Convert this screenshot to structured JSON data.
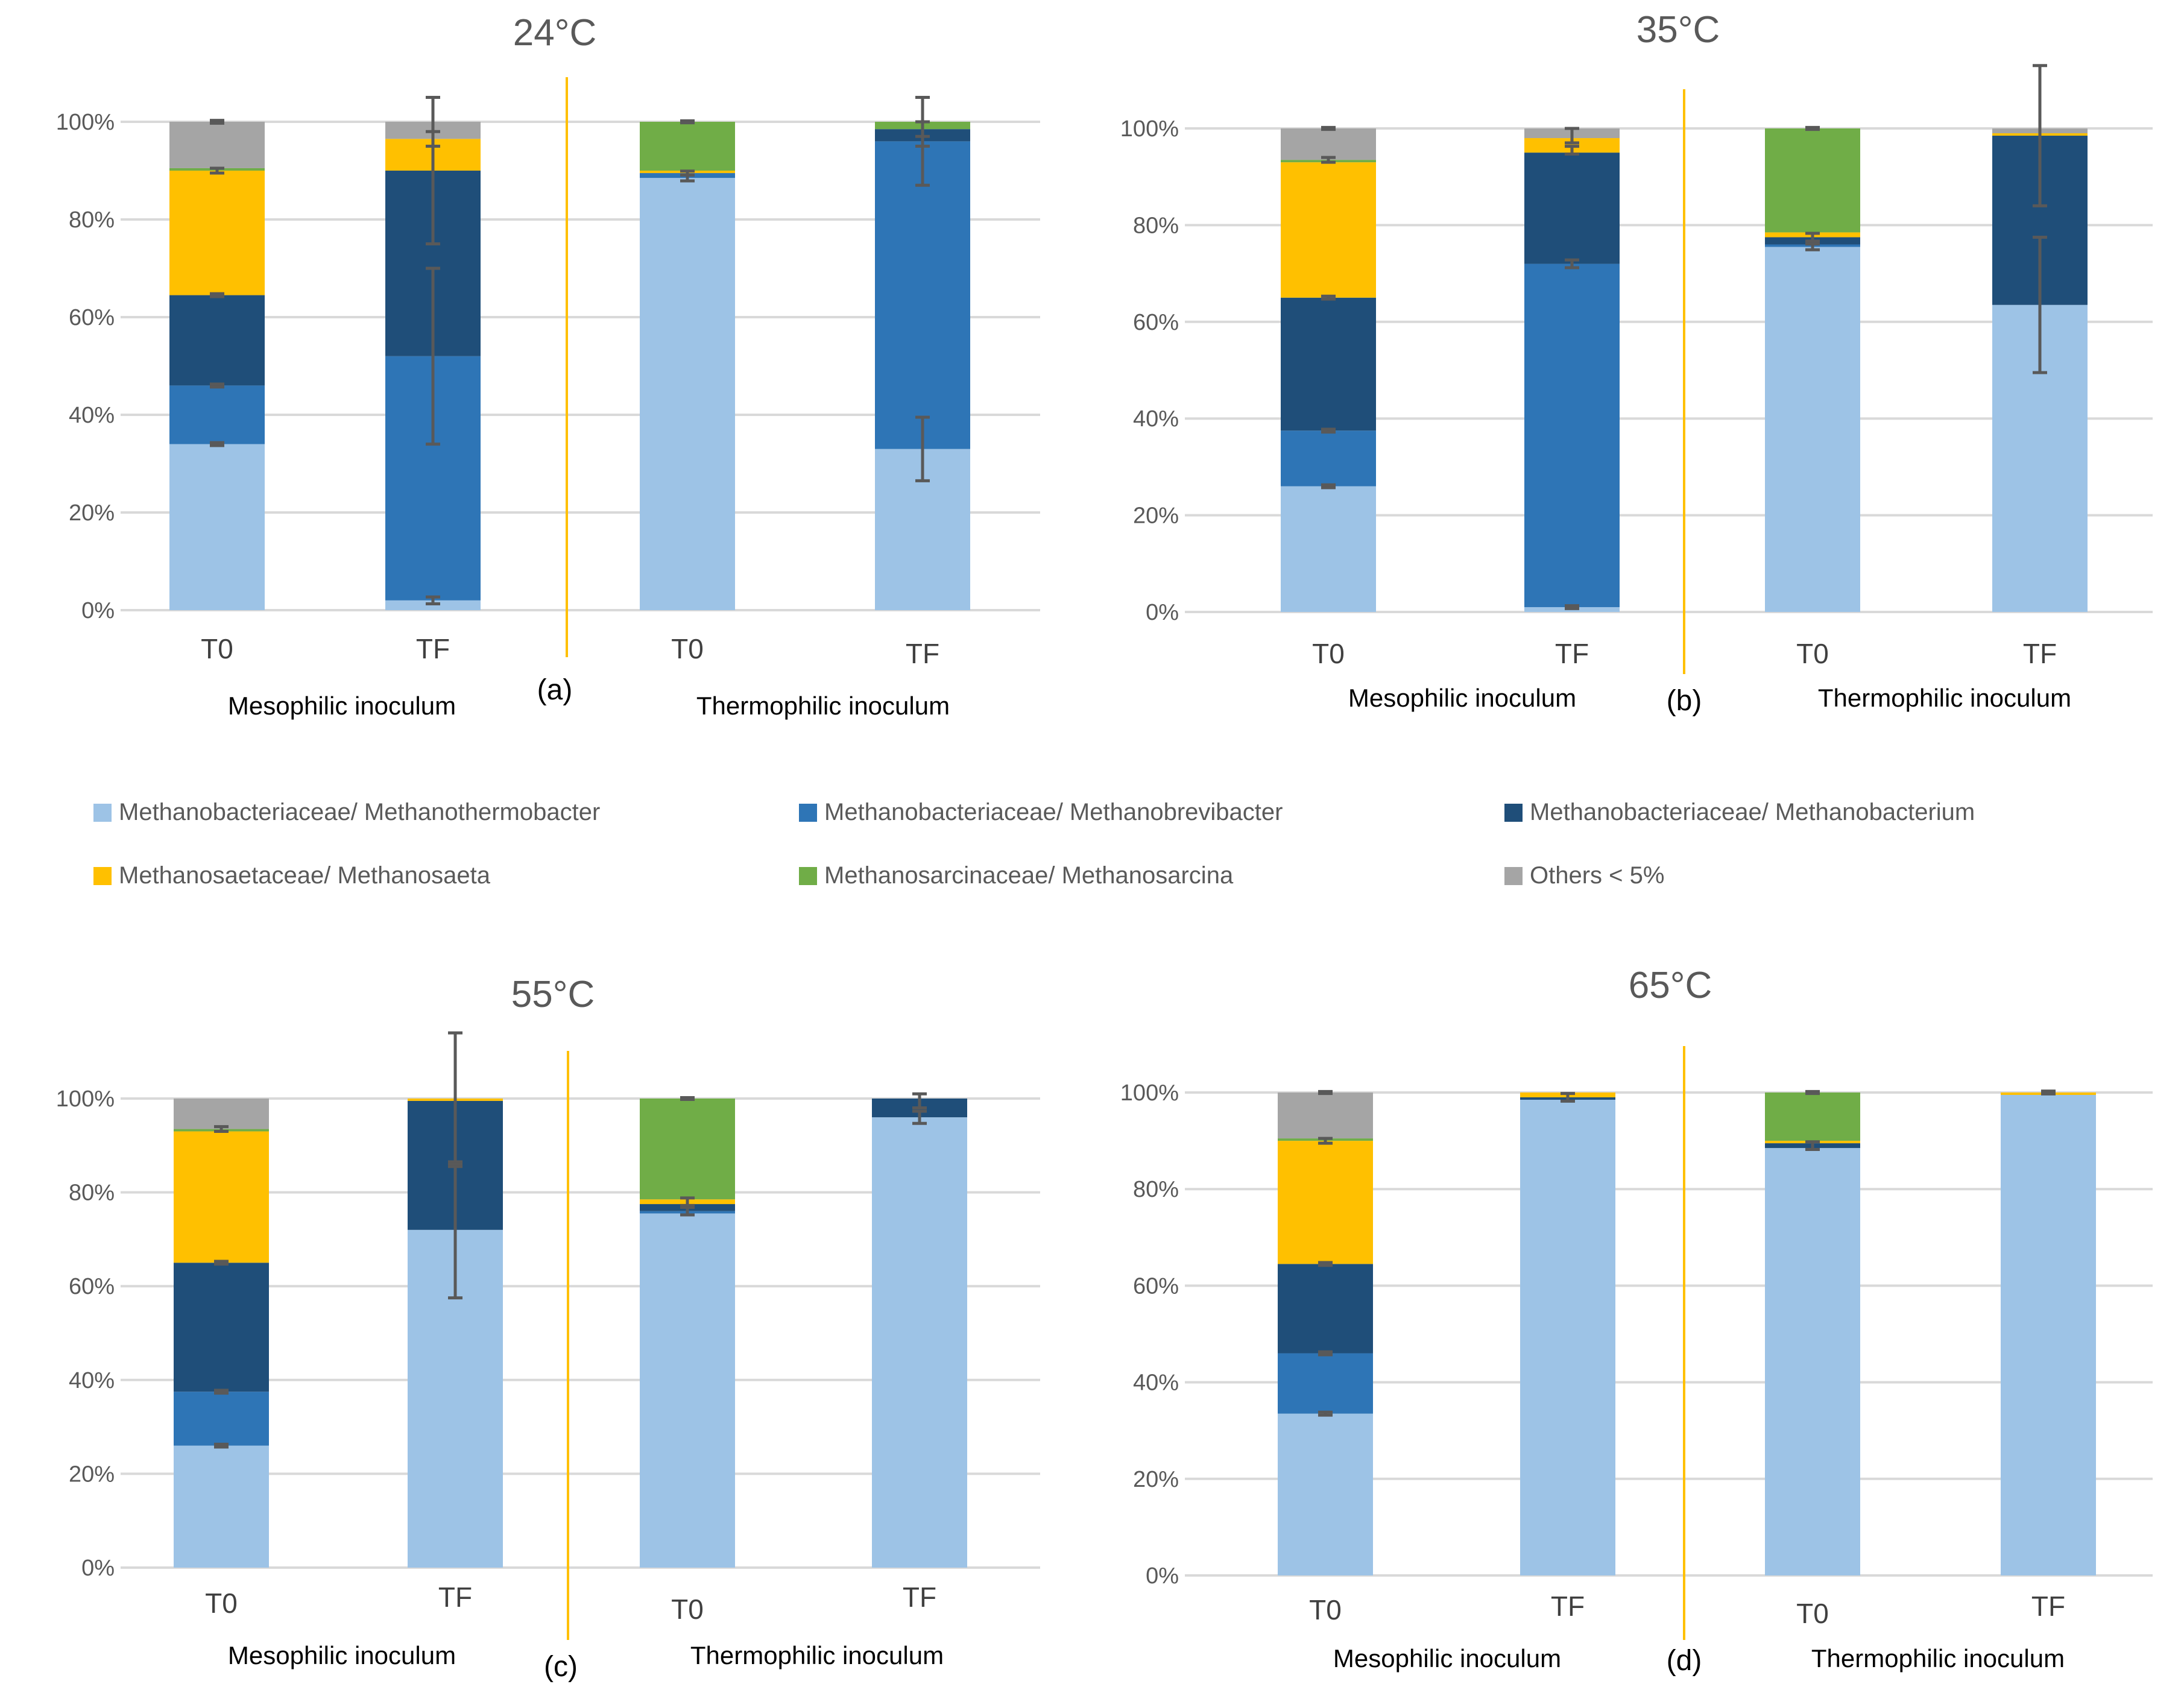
{
  "colors": {
    "Methanothermobacter": "#9DC3E6",
    "Methanobrevibacter": "#2E75B6",
    "Methanobacterium": "#1F4E79",
    "Methanosaeta": "#FFC000",
    "Methanosarcina": "#70AD47",
    "Others": "#A5A5A5",
    "divider": "#FFC000",
    "grid": "#D9D9D9",
    "errorbar": "#595959"
  },
  "legend": [
    {
      "label": "Methanobacteriaceae/ Methanothermobacter",
      "color_key": "Methanothermobacter"
    },
    {
      "label": "Methanobacteriaceae/ Methanobrevibacter",
      "color_key": "Methanobrevibacter"
    },
    {
      "label": "Methanobacteriaceae/ Methanobacterium",
      "color_key": "Methanobacterium"
    },
    {
      "label": "Methanosaetaceae/ Methanosaeta",
      "color_key": "Methanosaeta"
    },
    {
      "label": "Methanosarcinaceae/ Methanosarcina",
      "color_key": "Methanosarcina"
    },
    {
      "label": "Others < 5%",
      "color_key": "Others"
    }
  ],
  "chart_data": [
    {
      "type": "bar",
      "stacked": true,
      "title": "24°C",
      "panel_letter": "(a)",
      "categories": [
        "T0",
        "TF",
        "T0",
        "TF"
      ],
      "groups": [
        "Mesophilic inoculum",
        "Thermophilic inoculum"
      ],
      "yticks": [
        "0%",
        "20%",
        "40%",
        "60%",
        "80%",
        "100%"
      ],
      "ylim": [
        0,
        100
      ],
      "series": [
        {
          "name": "Methanobacteriaceae/ Methanothermobacter",
          "values": [
            34,
            2,
            88.5,
            33
          ]
        },
        {
          "name": "Methanobacteriaceae/ Methanobrevibacter",
          "values": [
            12,
            50,
            1,
            63
          ]
        },
        {
          "name": "Methanobacteriaceae/ Methanobacterium",
          "values": [
            18.5,
            38,
            0,
            2.5
          ]
        },
        {
          "name": "Methanosaetaceae/ Methanosaeta",
          "values": [
            25.5,
            6.5,
            0.5,
            0
          ]
        },
        {
          "name": "Methanosarcinaceae/ Methanosarcina",
          "values": [
            0.5,
            0,
            10,
            1.5
          ]
        },
        {
          "name": "Others < 5%",
          "values": [
            9.5,
            3.5,
            0,
            0
          ]
        }
      ],
      "error_bars": [
        [
          {
            "y": 34,
            "e": 0.3
          },
          {
            "y": 46,
            "e": 0.3
          },
          {
            "y": 64.5,
            "e": 0.3
          },
          {
            "y": 90,
            "e": 0.5
          },
          {
            "y": 100,
            "e": 0.3
          }
        ],
        [
          {
            "y": 2,
            "e": 0.7
          },
          {
            "y": 52,
            "e": 18
          },
          {
            "y": 90,
            "e": 15
          },
          {
            "y": 96.5,
            "e": 1.5
          },
          {
            "y": 100,
            "e": 5
          }
        ],
        [
          {
            "y": 88.5,
            "e": 0.6
          },
          {
            "y": 89.5,
            "e": 0.4
          },
          {
            "y": 100,
            "e": 0.2
          }
        ],
        [
          {
            "y": 33,
            "e": 6.5
          },
          {
            "y": 96,
            "e": 9
          },
          {
            "y": 98.5,
            "e": 1.5
          },
          {
            "y": 100,
            "e": 5
          }
        ]
      ]
    },
    {
      "type": "bar",
      "stacked": true,
      "title": "35°C",
      "panel_letter": "(b)",
      "categories": [
        "T0",
        "TF",
        "T0",
        "TF"
      ],
      "groups": [
        "Mesophilic inoculum",
        "Thermophilic inoculum"
      ],
      "yticks": [
        "0%",
        "20%",
        "40%",
        "60%",
        "80%",
        "100%"
      ],
      "ylim": [
        0,
        100
      ],
      "series": [
        {
          "name": "Methanobacteriaceae/ Methanothermobacter",
          "values": [
            26,
            1,
            75.5,
            63.5
          ]
        },
        {
          "name": "Methanobacteriaceae/ Methanobrevibacter",
          "values": [
            11.5,
            71,
            0.5,
            0
          ]
        },
        {
          "name": "Methanobacteriaceae/ Methanobacterium",
          "values": [
            27.5,
            23,
            1.5,
            35
          ]
        },
        {
          "name": "Methanosaetaceae/ Methanosaeta",
          "values": [
            28,
            3,
            1,
            0.5
          ]
        },
        {
          "name": "Methanosarcinaceae/ Methanosarcina",
          "values": [
            0.5,
            0,
            21.5,
            0
          ]
        },
        {
          "name": "Others < 5%",
          "values": [
            6.5,
            2,
            0,
            1
          ]
        }
      ],
      "error_bars": [
        [
          {
            "y": 26,
            "e": 0.3
          },
          {
            "y": 37.5,
            "e": 0.3
          },
          {
            "y": 65,
            "e": 0.3
          },
          {
            "y": 93.5,
            "e": 0.5
          },
          {
            "y": 100,
            "e": 0.2
          }
        ],
        [
          {
            "y": 1,
            "e": 0.3
          },
          {
            "y": 72,
            "e": 0.8
          },
          {
            "y": 95.5,
            "e": 0.8
          },
          {
            "y": 98.5,
            "e": 1.5
          }
        ],
        [
          {
            "y": 75.5,
            "e": 0.6
          },
          {
            "y": 77.5,
            "e": 0.8
          },
          {
            "y": 100,
            "e": 0.2
          }
        ],
        [
          {
            "y": 63.5,
            "e": 14
          },
          {
            "y": 98.5,
            "e": 14.5
          }
        ]
      ]
    },
    {
      "type": "bar",
      "stacked": true,
      "title": "55°C",
      "panel_letter": "(c)",
      "categories": [
        "T0",
        "TF",
        "T0",
        "TF"
      ],
      "groups": [
        "Mesophilic inoculum",
        "Thermophilic inoculum"
      ],
      "yticks": [
        "0%",
        "20%",
        "40%",
        "60%",
        "80%",
        "100%"
      ],
      "ylim": [
        0,
        100
      ],
      "series": [
        {
          "name": "Methanobacteriaceae/ Methanothermobacter",
          "values": [
            26,
            72,
            75.5,
            96
          ]
        },
        {
          "name": "Methanobacteriaceae/ Methanobrevibacter",
          "values": [
            11.5,
            0,
            0.5,
            0
          ]
        },
        {
          "name": "Methanobacteriaceae/ Methanobacterium",
          "values": [
            27.5,
            27.5,
            1.5,
            4
          ]
        },
        {
          "name": "Methanosaetaceae/ Methanosaeta",
          "values": [
            28,
            0.5,
            1,
            0
          ]
        },
        {
          "name": "Methanosarcinaceae/ Methanosarcina",
          "values": [
            0.5,
            0,
            21.5,
            0
          ]
        },
        {
          "name": "Others < 5%",
          "values": [
            6.5,
            0,
            0,
            0
          ]
        }
      ],
      "error_bars": [
        [
          {
            "y": 26,
            "e": 0.3
          },
          {
            "y": 37.5,
            "e": 0.3
          },
          {
            "y": 65,
            "e": 0.3
          },
          {
            "y": 93.5,
            "e": 0.5
          }
        ],
        [
          {
            "y": 72,
            "e": 14.5
          },
          {
            "y": 86,
            "e": 0.5
          },
          {
            "y": 100,
            "e": 14
          }
        ],
        [
          {
            "y": 76,
            "e": 0.8
          },
          {
            "y": 78,
            "e": 0.8
          },
          {
            "y": 100,
            "e": 0.2
          }
        ],
        [
          {
            "y": 96,
            "e": 1.3
          },
          {
            "y": 99.5,
            "e": 1.5
          }
        ]
      ]
    },
    {
      "type": "bar",
      "stacked": true,
      "title": "65°C",
      "panel_letter": "(d)",
      "categories": [
        "T0",
        "TF",
        "T0",
        "TF"
      ],
      "groups": [
        "Mesophilic inoculum",
        "Thermophilic inoculum"
      ],
      "yticks": [
        "0%",
        "20%",
        "40%",
        "60%",
        "80%",
        "100%"
      ],
      "ylim": [
        0,
        100
      ],
      "series": [
        {
          "name": "Methanobacteriaceae/ Methanothermobacter",
          "values": [
            33.5,
            98.5,
            88.5,
            99.5
          ]
        },
        {
          "name": "Methanobacteriaceae/ Methanobrevibacter",
          "values": [
            12.5,
            0,
            0,
            0
          ]
        },
        {
          "name": "Methanobacteriaceae/ Methanobacterium",
          "values": [
            18.5,
            0.5,
            1,
            0
          ]
        },
        {
          "name": "Methanosaetaceae/ Methanosaeta",
          "values": [
            25.5,
            1,
            0.5,
            0.5
          ]
        },
        {
          "name": "Methanosarcinaceae/ Methanosarcina",
          "values": [
            0.5,
            0,
            10,
            0
          ]
        },
        {
          "name": "Others < 5%",
          "values": [
            9.5,
            0,
            0,
            0
          ]
        }
      ],
      "error_bars": [
        [
          {
            "y": 33.5,
            "e": 0.3
          },
          {
            "y": 46,
            "e": 0.3
          },
          {
            "y": 64.5,
            "e": 0.3
          },
          {
            "y": 90,
            "e": 0.5
          },
          {
            "y": 100,
            "e": 0.2
          }
        ],
        [
          {
            "y": 99,
            "e": 0.8
          }
        ],
        [
          {
            "y": 89,
            "e": 0.8
          },
          {
            "y": 100,
            "e": 0.2
          }
        ],
        [
          {
            "y": 100,
            "e": 0.3
          }
        ]
      ]
    }
  ]
}
